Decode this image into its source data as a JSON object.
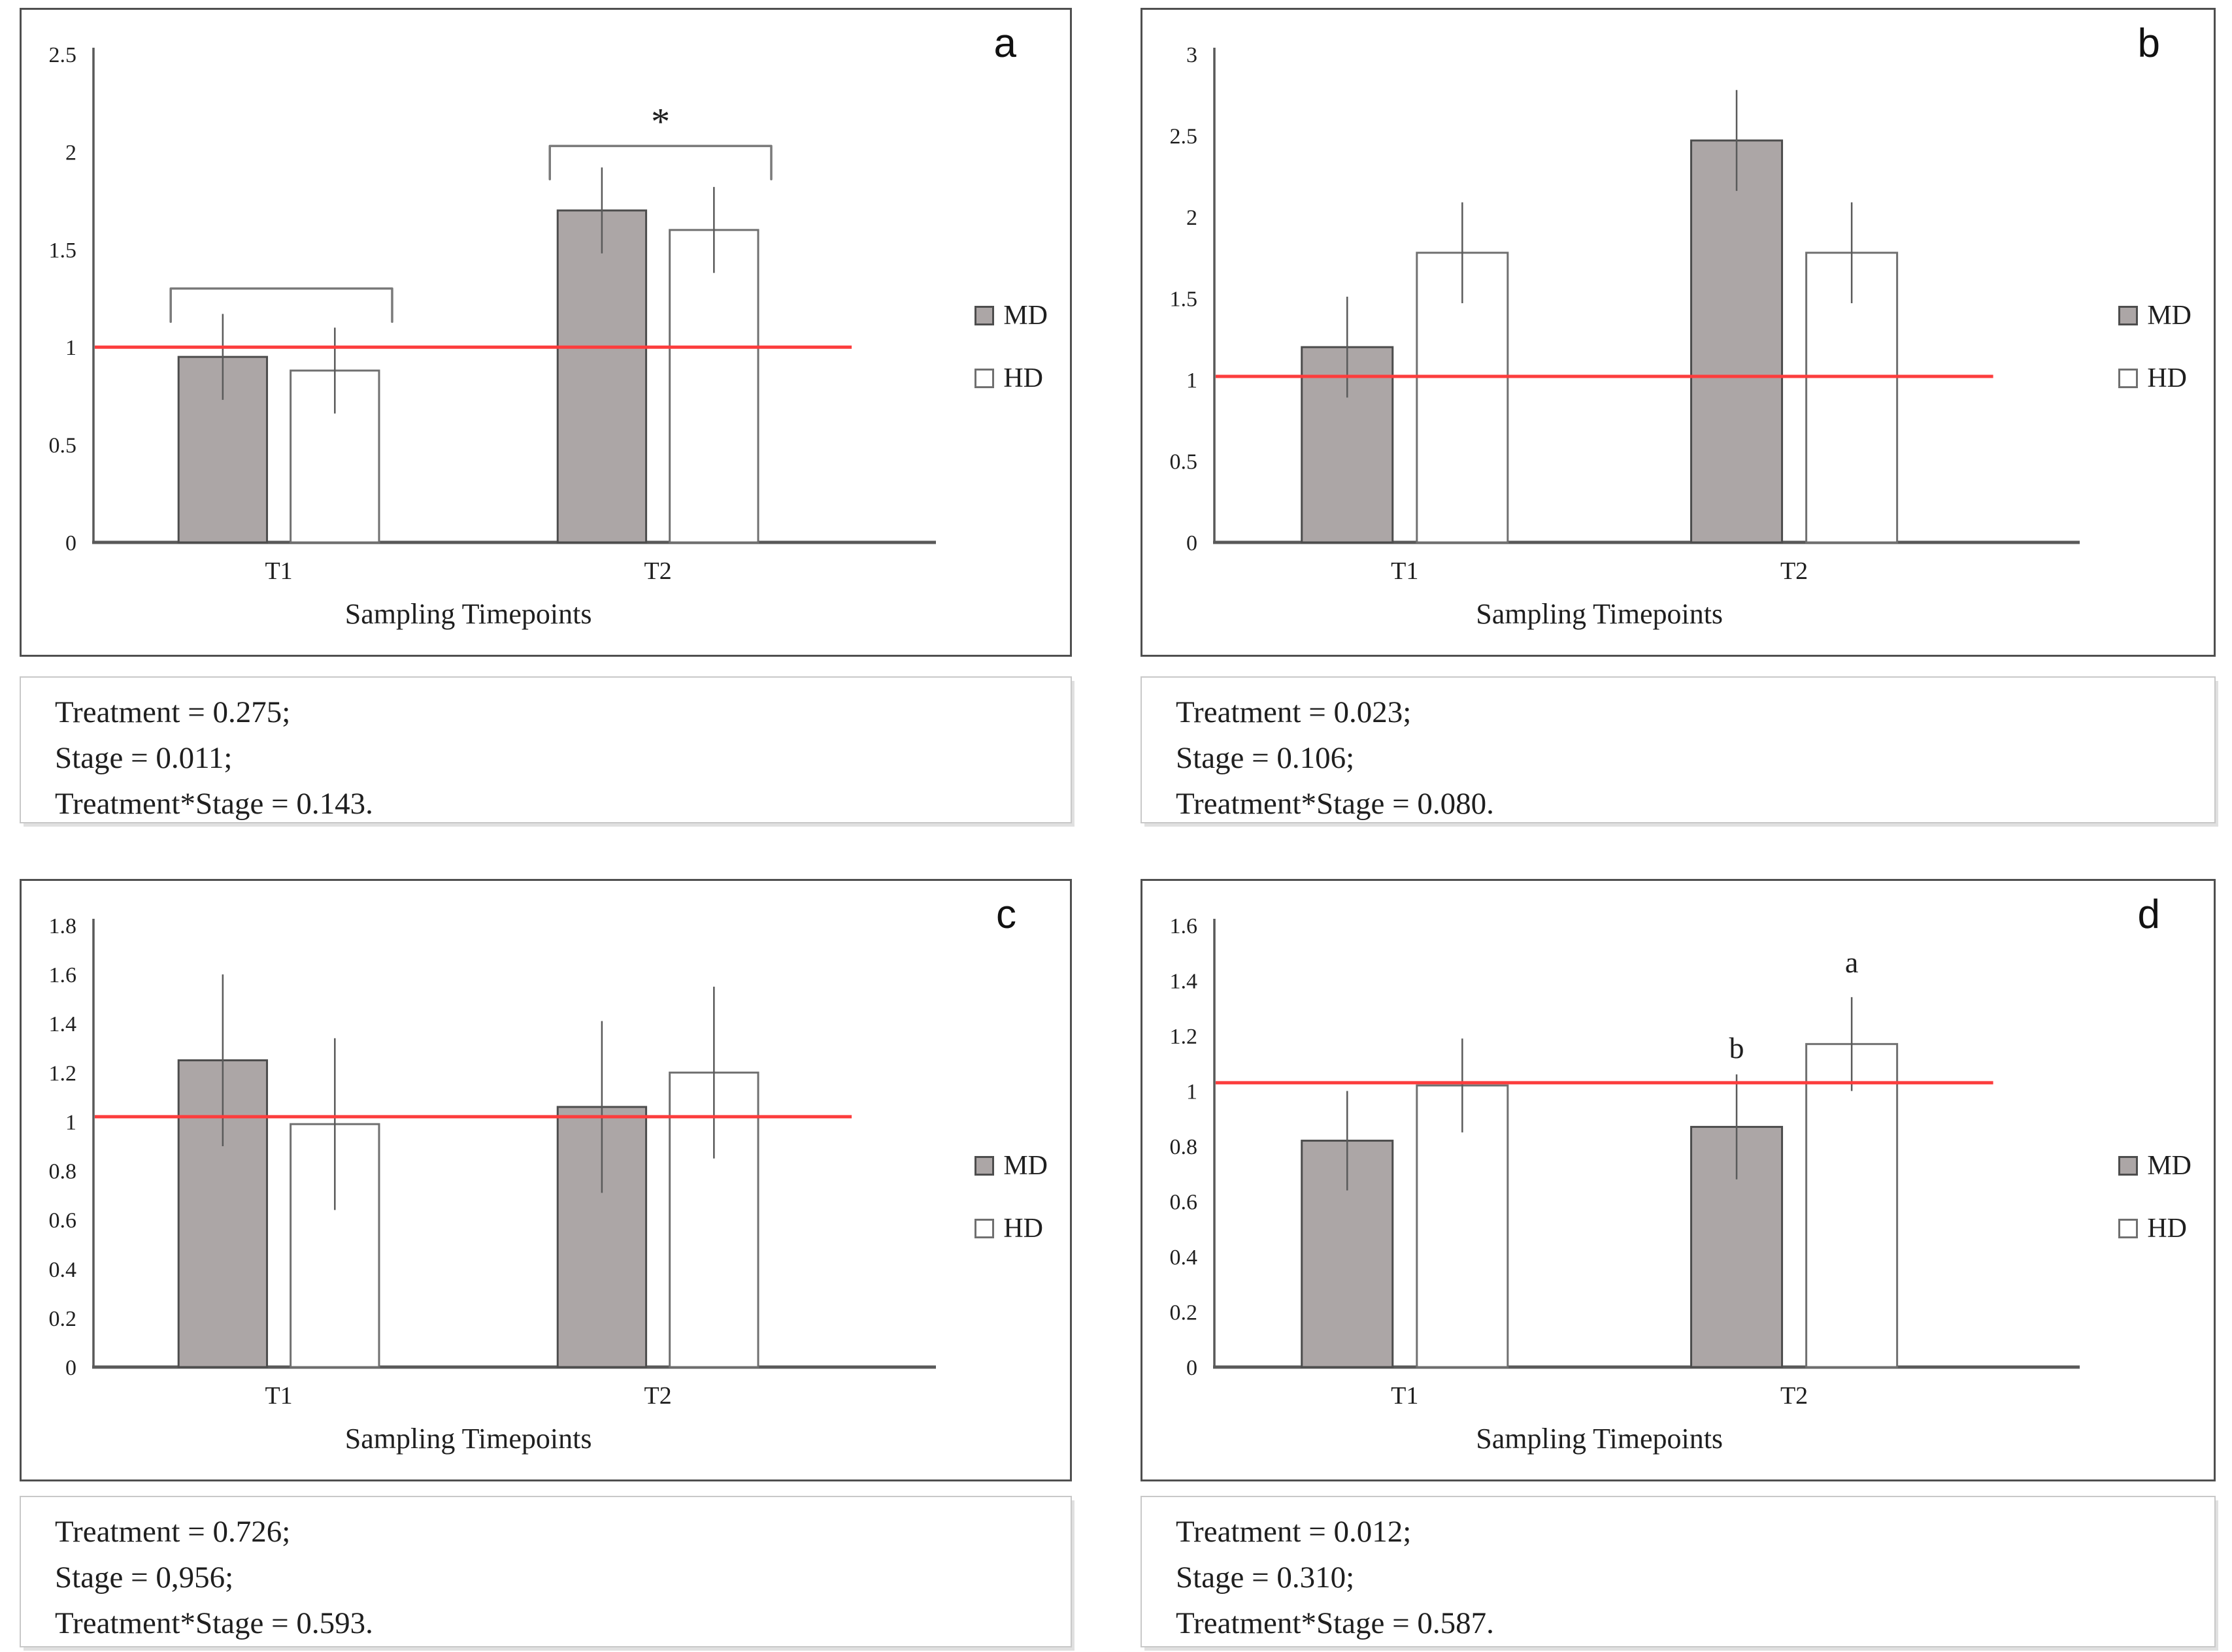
{
  "figure": {
    "background": "#ffffff"
  },
  "colors": {
    "md_fill": "#aca6a6",
    "md_border": "#4d4d4d",
    "hd_fill": "#ffffff",
    "hd_border": "#707070",
    "axis": "#595959",
    "error_bar": "#5a5a5a",
    "ref_line": "#fc3d3d",
    "bracket": "#7a7a7a",
    "chart_border": "#4f4f4f",
    "stats_border": "#c8c8c8"
  },
  "panels": [
    {
      "letter": "a",
      "legend": [
        {
          "label": "MD"
        },
        {
          "label": "HD"
        }
      ],
      "stats": [
        "Treatment = 0.275;",
        "Stage = 0.011;",
        "Treatment*Stage = 0.143."
      ]
    },
    {
      "letter": "b",
      "legend": [
        {
          "label": "MD"
        },
        {
          "label": "HD"
        }
      ],
      "stats": [
        "Treatment = 0.023;",
        "Stage = 0.106;",
        "Treatment*Stage = 0.080."
      ]
    },
    {
      "letter": "c",
      "legend": [
        {
          "label": "MD"
        },
        {
          "label": "HD"
        }
      ],
      "stats": [
        "Treatment = 0.726;",
        "Stage = 0,956;",
        "Treatment*Stage = 0.593."
      ]
    },
    {
      "letter": "d",
      "legend": [
        {
          "label": "MD"
        },
        {
          "label": "HD"
        }
      ],
      "stats": [
        "Treatment = 0.012;",
        "Stage = 0.310;",
        "Treatment*Stage = 0.587."
      ]
    }
  ],
  "chart_data": [
    {
      "type": "bar",
      "title": "",
      "categories": [
        "T1",
        "T2"
      ],
      "series": [
        {
          "name": "MD",
          "values": [
            0.95,
            1.7
          ],
          "errors": [
            0.22,
            0.22
          ]
        },
        {
          "name": "HD",
          "values": [
            0.88,
            1.6
          ],
          "errors": [
            0.22,
            0.22
          ]
        }
      ],
      "xlabel": "Sampling Timepoints",
      "ylabel": "",
      "ylim": [
        0,
        2.5
      ],
      "ytick_step": 0.5,
      "ref_line": 1.0,
      "grid": false,
      "legend_position": "right",
      "brackets": [
        {
          "category": 0,
          "top": 1.3,
          "leg_bottom": 1.13,
          "label": ""
        },
        {
          "category": 1,
          "top": 2.03,
          "leg_bottom": 1.86,
          "label": "*"
        }
      ],
      "bar_labels": []
    },
    {
      "type": "bar",
      "title": "",
      "categories": [
        "T1",
        "T2"
      ],
      "series": [
        {
          "name": "MD",
          "values": [
            1.2,
            2.47
          ],
          "errors": [
            0.31,
            0.31
          ]
        },
        {
          "name": "HD",
          "values": [
            1.78,
            1.78
          ],
          "errors": [
            0.31,
            0.31
          ]
        }
      ],
      "xlabel": "Sampling Timepoints",
      "ylabel": "",
      "ylim": [
        0,
        3
      ],
      "ytick_step": 0.5,
      "ref_line": 1.02,
      "grid": false,
      "legend_position": "right",
      "brackets": [],
      "bar_labels": []
    },
    {
      "type": "bar",
      "title": "",
      "categories": [
        "T1",
        "T2"
      ],
      "series": [
        {
          "name": "MD",
          "values": [
            1.25,
            1.06
          ],
          "errors": [
            0.35,
            0.35
          ]
        },
        {
          "name": "HD",
          "values": [
            0.99,
            1.2
          ],
          "errors": [
            0.35,
            0.35
          ]
        }
      ],
      "xlabel": "Sampling Timepoints",
      "ylabel": "",
      "ylim": [
        0,
        1.8
      ],
      "ytick_step": 0.2,
      "ref_line": 1.02,
      "grid": false,
      "legend_position": "right",
      "brackets": [],
      "bar_labels": []
    },
    {
      "type": "bar",
      "title": "",
      "categories": [
        "T1",
        "T2"
      ],
      "series": [
        {
          "name": "MD",
          "values": [
            0.82,
            0.87
          ],
          "errors": [
            0.18,
            0.19
          ]
        },
        {
          "name": "HD",
          "values": [
            1.02,
            1.17
          ],
          "errors": [
            0.17,
            0.17
          ]
        }
      ],
      "xlabel": "Sampling Timepoints",
      "ylabel": "",
      "ylim": [
        0,
        1.6
      ],
      "ytick_step": 0.2,
      "ref_line": 1.03,
      "grid": false,
      "legend_position": "right",
      "brackets": [],
      "bar_labels": [
        {
          "category": 1,
          "series": 0,
          "y": 1.12,
          "text": "b"
        },
        {
          "category": 1,
          "series": 1,
          "y": 1.43,
          "text": "a"
        }
      ]
    }
  ]
}
